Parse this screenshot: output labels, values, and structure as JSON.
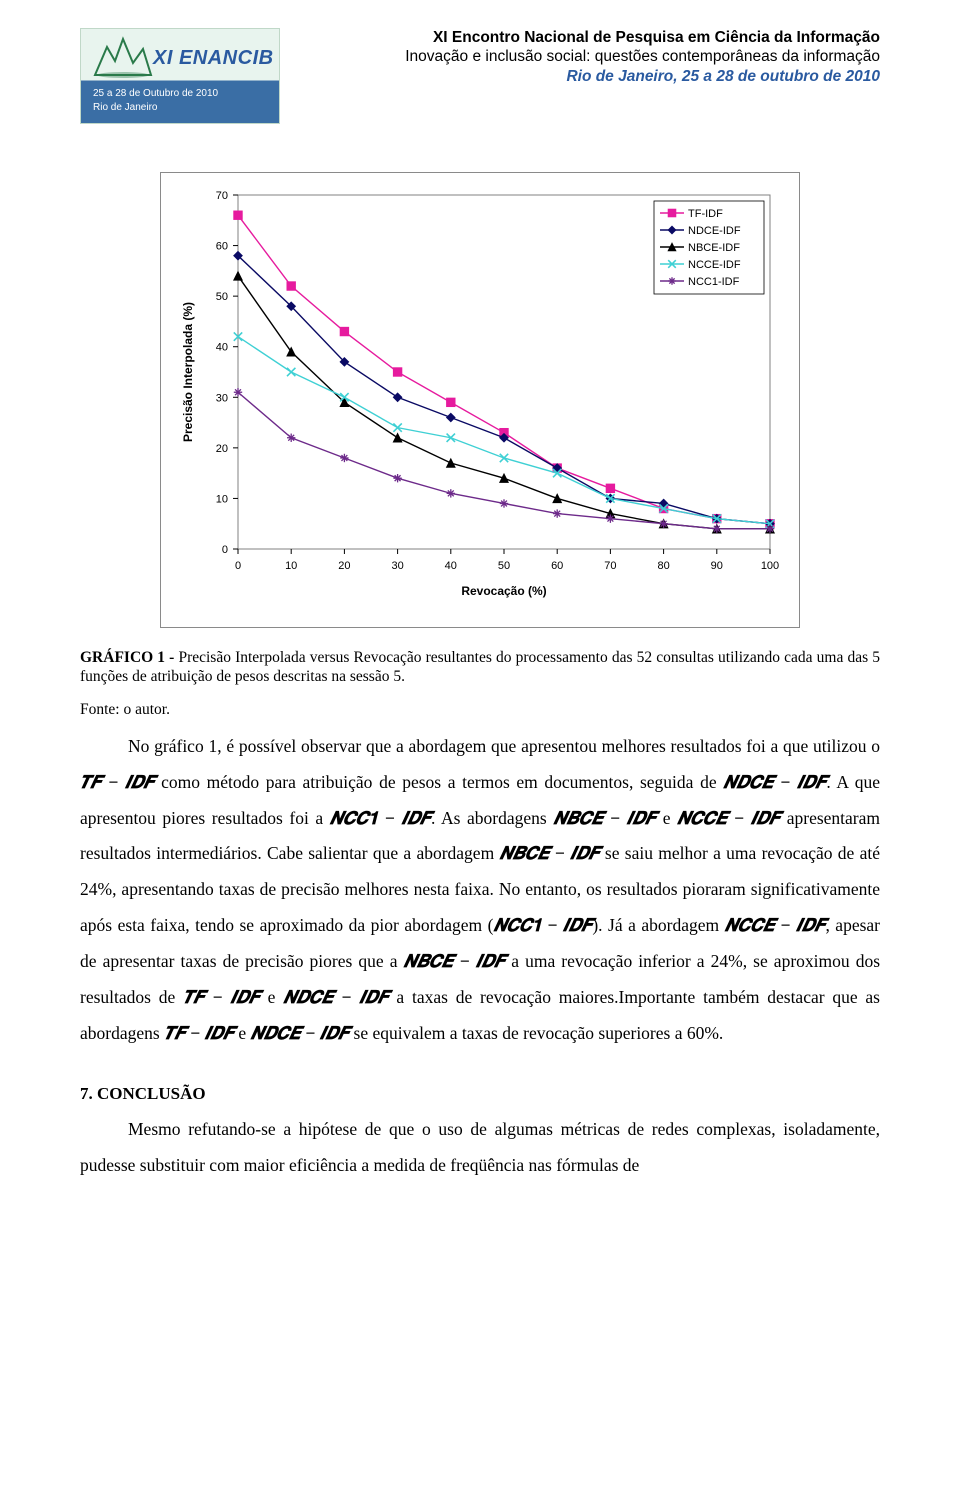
{
  "header": {
    "logo_brand": "XI ENANCIB",
    "logo_sub1": "25 a 28 de Outubro de 2010",
    "logo_sub2": "Rio de Janeiro",
    "line1": "XI Encontro Nacional de Pesquisa em Ciência da Informação",
    "line2": "Inovação e inclusão social: questões contemporâneas da informação",
    "line3": "Rio de Janeiro, 25 a 28 de outubro de 2010"
  },
  "chart": {
    "type": "line",
    "y_axis_label": "Precisão Interpolada (%)",
    "x_axis_label": "Revocação (%)",
    "xlim": [
      0,
      100
    ],
    "ylim": [
      0,
      70
    ],
    "xtick_step": 10,
    "ytick_step": 10,
    "axis_fontsize": 11,
    "label_fontsize": 12,
    "axis_font": "Verdana, Arial, sans-serif",
    "background_color": "#ffffff",
    "border_color": "#808080",
    "tick_color": "#000000",
    "line_width": 1.4,
    "marker_size": 4.2,
    "legend": {
      "position": "top-right",
      "border_color": "#000000",
      "fontsize": 11,
      "items": [
        "TF-IDF",
        "NDCE-IDF",
        "NBCE-IDF",
        "NCCE-IDF",
        "NCC1-IDF"
      ]
    },
    "series": [
      {
        "name": "TF-IDF",
        "color": "#e61b9e",
        "marker": "square",
        "x": [
          0,
          10,
          20,
          30,
          40,
          50,
          60,
          70,
          80,
          90,
          100
        ],
        "y": [
          66,
          52,
          43,
          35,
          29,
          23,
          16,
          12,
          8,
          6,
          5
        ]
      },
      {
        "name": "NDCE-IDF",
        "color": "#0a0a64",
        "marker": "diamond",
        "x": [
          0,
          10,
          20,
          30,
          40,
          50,
          60,
          70,
          80,
          90,
          100
        ],
        "y": [
          58,
          48,
          37,
          30,
          26,
          22,
          16,
          10,
          9,
          6,
          5
        ]
      },
      {
        "name": "NBCE-IDF",
        "color": "#000000",
        "marker": "triangle",
        "x": [
          0,
          10,
          20,
          30,
          40,
          50,
          60,
          70,
          80,
          90,
          100
        ],
        "y": [
          54,
          39,
          29,
          22,
          17,
          14,
          10,
          7,
          5,
          4,
          4
        ]
      },
      {
        "name": "NCCE-IDF",
        "color": "#3fd0d4",
        "marker": "x",
        "x": [
          0,
          10,
          20,
          30,
          40,
          50,
          60,
          70,
          80,
          90,
          100
        ],
        "y": [
          42,
          35,
          30,
          24,
          22,
          18,
          15,
          10,
          8,
          6,
          5
        ]
      },
      {
        "name": "NCC1-IDF",
        "color": "#6d2a8a",
        "marker": "star",
        "x": [
          0,
          10,
          20,
          30,
          40,
          50,
          60,
          70,
          80,
          90,
          100
        ],
        "y": [
          31,
          22,
          18,
          14,
          11,
          9,
          7,
          6,
          5,
          4,
          4
        ]
      }
    ]
  },
  "caption": {
    "lead": "GRÁFICO 1 -",
    "text": " Precisão Interpolada versus Revocação resultantes do processamento das 52 consultas utilizando cada uma das 5 funções de atribuição de pesos descritas na sessão 5."
  },
  "fonte": "Fonte: o autor.",
  "paragraph": {
    "p1a": "No gráfico 1, é possível observar que a abordagem que apresentou melhores resultados foi a que utilizou o ",
    "f1": "𝑻𝑭 − 𝑰𝑫𝑭",
    "p1b": " como método para atribuição de pesos a termos em documentos, seguida de ",
    "f2": "𝑵𝑫𝑪𝑬 − 𝑰𝑫𝑭",
    "p1c": ". A que apresentou piores resultados foi a ",
    "f3": "𝑵𝑪𝑪𝟏 − 𝑰𝑫𝑭",
    "p1d": ". As abordagens ",
    "f4": "𝑵𝑩𝑪𝑬 − 𝑰𝑫𝑭",
    "p1e": " e ",
    "f5": "𝑵𝑪𝑪𝑬 − 𝑰𝑫𝑭",
    "p1f": " apresentaram resultados intermediários. Cabe salientar que a abordagem ",
    "f6": "𝑵𝑩𝑪𝑬 − 𝑰𝑫𝑭",
    "p1g": " se saiu melhor a uma revocação de até 24%, apresentando taxas de precisão melhores nesta faixa. No entanto, os resultados pioraram significativamente após esta faixa, tendo se aproximado da pior abordagem (",
    "f7": "𝑵𝑪𝑪𝟏 − 𝑰𝑫𝑭",
    "p1h": "). Já a abordagem ",
    "f8": "𝑵𝑪𝑪𝑬 − 𝑰𝑫𝑭",
    "p1i": ", apesar de apresentar taxas de precisão piores que a ",
    "f9": "𝑵𝑩𝑪𝑬 − 𝑰𝑫𝑭",
    "p1j": " a uma revocação inferior a 24%, se aproximou dos resultados de ",
    "f10": "𝑻𝑭 − 𝑰𝑫𝑭",
    "p1k": " e ",
    "f11": "𝑵𝑫𝑪𝑬 − 𝑰𝑫𝑭",
    "p1l": " a taxas de revocação maiores.Importante também destacar que as abordagens ",
    "f12": "𝑻𝑭 − 𝑰𝑫𝑭",
    "p1m": "  e ",
    "f13": "𝑵𝑫𝑪𝑬 − 𝑰𝑫𝑭",
    "p1n": " se equivalem a taxas de revocação superiores a 60%."
  },
  "section": {
    "num": "7.",
    "title": " CONCLUSÃO"
  },
  "conclusion": {
    "c1": "Mesmo refutando-se a hipótese de que o uso de algumas métricas de redes complexas, isoladamente, pudesse substituir com maior eficiência a medida de freqüência nas fórmulas de"
  }
}
